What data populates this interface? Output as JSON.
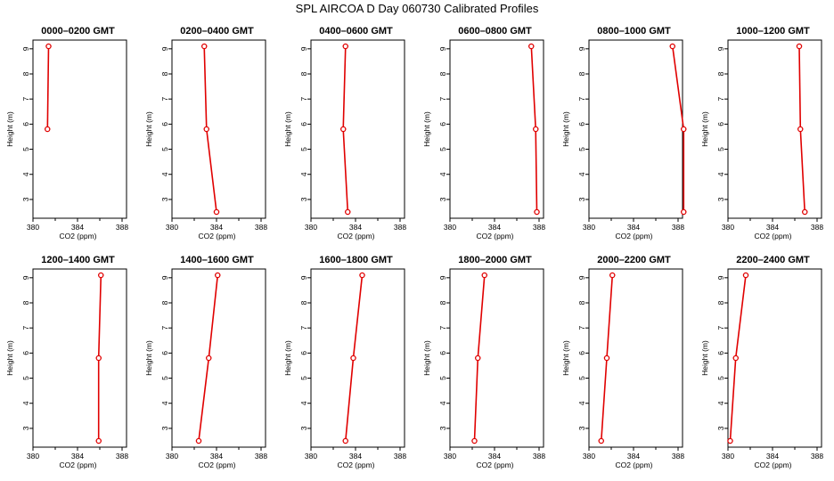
{
  "title": "SPL AIRCOA D  Day 060730  Calibrated Profiles",
  "colors": {
    "line": "#e00000",
    "axis": "#000000"
  },
  "chart_data": [
    {
      "type": "line",
      "title": "0000–0200 GMT",
      "xlabel": "CO2 (ppm)",
      "ylabel": "Height (m)",
      "xlim": [
        380,
        388
      ],
      "ylim": [
        2.5,
        9.1
      ],
      "xticks": [
        380,
        384,
        388
      ],
      "yticks": [
        3,
        4,
        5,
        6,
        7,
        8,
        9
      ],
      "x": [
        381.4,
        381.3
      ],
      "y": [
        9.1,
        5.8
      ]
    },
    {
      "type": "line",
      "title": "0200–0400 GMT",
      "xlabel": "CO2 (ppm)",
      "ylabel": "Height (m)",
      "xlim": [
        380,
        388
      ],
      "ylim": [
        2.5,
        9.1
      ],
      "xticks": [
        380,
        384,
        388
      ],
      "yticks": [
        3,
        4,
        5,
        6,
        7,
        8,
        9
      ],
      "x": [
        382.9,
        383.1,
        384.0
      ],
      "y": [
        9.1,
        5.8,
        2.5
      ]
    },
    {
      "type": "line",
      "title": "0400–0600 GMT",
      "xlabel": "CO2 (ppm)",
      "ylabel": "Height (m)",
      "xlim": [
        380,
        388
      ],
      "ylim": [
        2.5,
        9.1
      ],
      "xticks": [
        380,
        384,
        388
      ],
      "yticks": [
        3,
        4,
        5,
        6,
        7,
        8,
        9
      ],
      "x": [
        383.1,
        382.9,
        383.3
      ],
      "y": [
        9.1,
        5.8,
        2.5
      ]
    },
    {
      "type": "line",
      "title": "0600–0800 GMT",
      "xlabel": "CO2 (ppm)",
      "ylabel": "Height (m)",
      "xlim": [
        380,
        388
      ],
      "ylim": [
        2.5,
        9.1
      ],
      "xticks": [
        380,
        384,
        388
      ],
      "yticks": [
        3,
        4,
        5,
        6,
        7,
        8,
        9
      ],
      "x": [
        387.3,
        387.7,
        387.8
      ],
      "y": [
        9.1,
        5.8,
        2.5
      ]
    },
    {
      "type": "line",
      "title": "0800–1000 GMT",
      "xlabel": "CO2 (ppm)",
      "ylabel": "Height (m)",
      "xlim": [
        380,
        388
      ],
      "ylim": [
        2.5,
        9.1
      ],
      "xticks": [
        380,
        384,
        388
      ],
      "yticks": [
        3,
        4,
        5,
        6,
        7,
        8,
        9
      ],
      "x": [
        387.5,
        388.5,
        388.5
      ],
      "y": [
        9.1,
        5.8,
        2.5
      ]
    },
    {
      "type": "line",
      "title": "1000–1200 GMT",
      "xlabel": "CO2 (ppm)",
      "ylabel": "Height (m)",
      "xlim": [
        380,
        388
      ],
      "ylim": [
        2.5,
        9.1
      ],
      "xticks": [
        380,
        384,
        388
      ],
      "yticks": [
        3,
        4,
        5,
        6,
        7,
        8,
        9
      ],
      "x": [
        386.4,
        386.5,
        386.9
      ],
      "y": [
        9.1,
        5.8,
        2.5
      ]
    },
    {
      "type": "line",
      "title": "1200–1400 GMT",
      "xlabel": "CO2 (ppm)",
      "ylabel": "Height (m)",
      "xlim": [
        380,
        388
      ],
      "ylim": [
        2.5,
        9.1
      ],
      "xticks": [
        380,
        384,
        388
      ],
      "yticks": [
        3,
        4,
        5,
        6,
        7,
        8,
        9
      ],
      "x": [
        386.1,
        385.9,
        385.9
      ],
      "y": [
        9.1,
        5.8,
        2.5
      ]
    },
    {
      "type": "line",
      "title": "1400–1600 GMT",
      "xlabel": "CO2 (ppm)",
      "ylabel": "Height (m)",
      "xlim": [
        380,
        388
      ],
      "ylim": [
        2.5,
        9.1
      ],
      "xticks": [
        380,
        384,
        388
      ],
      "yticks": [
        3,
        4,
        5,
        6,
        7,
        8,
        9
      ],
      "x": [
        384.1,
        383.3,
        382.4
      ],
      "y": [
        9.1,
        5.8,
        2.5
      ]
    },
    {
      "type": "line",
      "title": "1600–1800 GMT",
      "xlabel": "CO2 (ppm)",
      "ylabel": "Height (m)",
      "xlim": [
        380,
        388
      ],
      "ylim": [
        2.5,
        9.1
      ],
      "xticks": [
        380,
        384,
        388
      ],
      "yticks": [
        3,
        4,
        5,
        6,
        7,
        8,
        9
      ],
      "x": [
        384.6,
        383.8,
        383.1
      ],
      "y": [
        9.1,
        5.8,
        2.5
      ]
    },
    {
      "type": "line",
      "title": "1800–2000 GMT",
      "xlabel": "CO2 (ppm)",
      "ylabel": "Height (m)",
      "xlim": [
        380,
        388
      ],
      "ylim": [
        2.5,
        9.1
      ],
      "xticks": [
        380,
        384,
        388
      ],
      "yticks": [
        3,
        4,
        5,
        6,
        7,
        8,
        9
      ],
      "x": [
        383.1,
        382.5,
        382.2
      ],
      "y": [
        9.1,
        5.8,
        2.5
      ]
    },
    {
      "type": "line",
      "title": "2000–2200 GMT",
      "xlabel": "CO2 (ppm)",
      "ylabel": "Height (m)",
      "xlim": [
        380,
        388
      ],
      "ylim": [
        2.5,
        9.1
      ],
      "xticks": [
        380,
        384,
        388
      ],
      "yticks": [
        3,
        4,
        5,
        6,
        7,
        8,
        9
      ],
      "x": [
        382.1,
        381.6,
        381.1
      ],
      "y": [
        9.1,
        5.8,
        2.5
      ]
    },
    {
      "type": "line",
      "title": "2200–2400 GMT",
      "xlabel": "CO2 (ppm)",
      "ylabel": "Height (m)",
      "xlim": [
        380,
        388
      ],
      "ylim": [
        2.5,
        9.1
      ],
      "xticks": [
        380,
        384,
        388
      ],
      "yticks": [
        3,
        4,
        5,
        6,
        7,
        8,
        9
      ],
      "x": [
        381.6,
        380.7,
        380.2
      ],
      "y": [
        9.1,
        5.8,
        2.5
      ]
    }
  ]
}
